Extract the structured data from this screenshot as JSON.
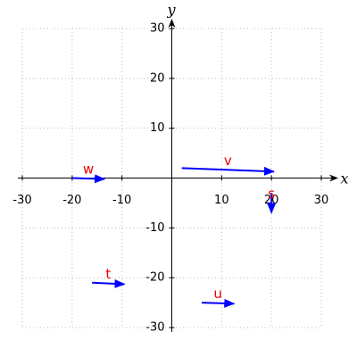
{
  "chart_data": {
    "type": "quiver",
    "xlabel": "x",
    "ylabel": "y",
    "xlim": [
      -30,
      30
    ],
    "ylim": [
      -30,
      30
    ],
    "xticks": [
      -30,
      -20,
      -10,
      10,
      20,
      30
    ],
    "yticks": [
      -30,
      -20,
      -10,
      10,
      20,
      30
    ],
    "grid": true,
    "color": "#0000ff",
    "label_color": "#ee0000",
    "vectors": [
      {
        "name": "w",
        "x": -20,
        "y": 0,
        "dx": 6.5,
        "dy": -0.2
      },
      {
        "name": "v",
        "x": 2,
        "y": 2,
        "dx": 18.5,
        "dy": -0.7
      },
      {
        "name": "s",
        "x": 20,
        "y": -3,
        "dx": 0,
        "dy": -4
      },
      {
        "name": "t",
        "x": -16,
        "y": -21,
        "dx": 6.5,
        "dy": -0.3
      },
      {
        "name": "u",
        "x": 6,
        "y": -25,
        "dx": 6.5,
        "dy": -0.2
      }
    ]
  }
}
